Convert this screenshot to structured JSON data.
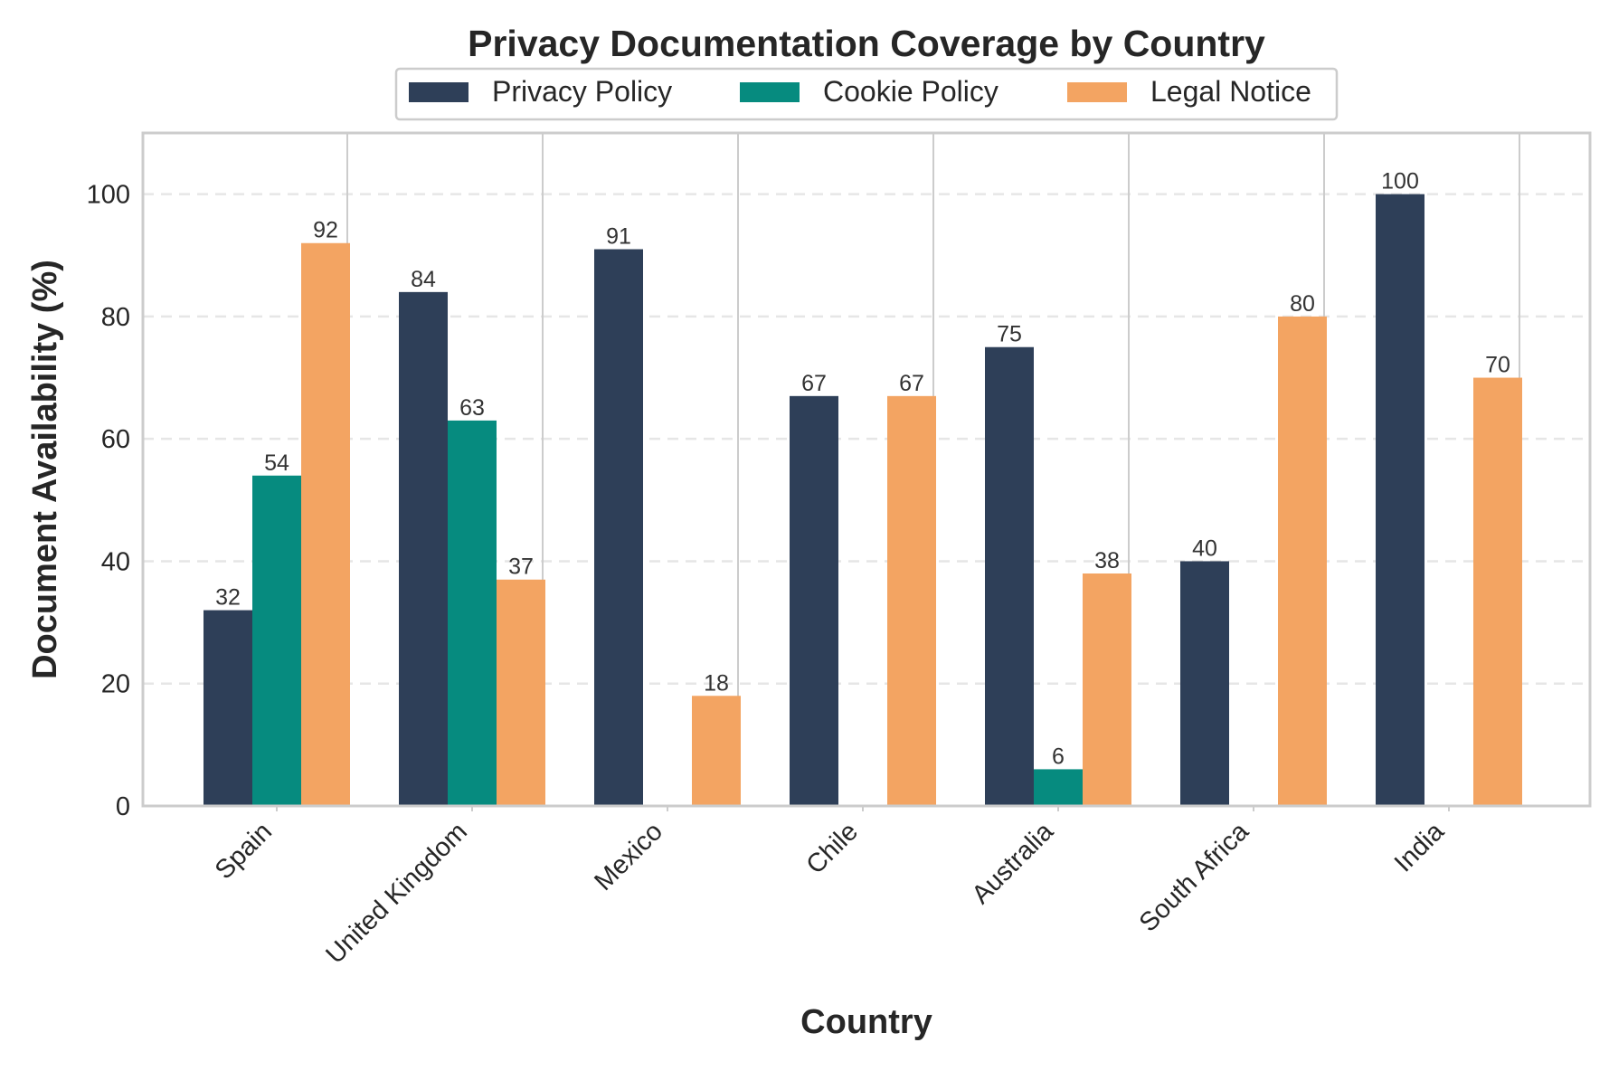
{
  "chart_data": {
    "type": "bar",
    "title": "Privacy Documentation Coverage by Country",
    "xlabel": "Country",
    "ylabel": "Document Availability (%)",
    "ylim": [
      0,
      110
    ],
    "yticks": [
      0,
      20,
      40,
      60,
      80,
      100
    ],
    "grid": "y-dashed",
    "legend_position": "top-center",
    "categories": [
      "Spain",
      "United Kingdom",
      "Mexico",
      "Chile",
      "Australia",
      "South Africa",
      "India"
    ],
    "series": [
      {
        "name": "Privacy Policy",
        "color": "#2e3f58",
        "values": [
          32,
          84,
          91,
          67,
          75,
          40,
          100
        ]
      },
      {
        "name": "Cookie Policy",
        "color": "#068b7f",
        "values": [
          54,
          63,
          null,
          null,
          6,
          null,
          null
        ]
      },
      {
        "name": "Legal Notice",
        "color": "#f3a462",
        "values": [
          92,
          37,
          18,
          67,
          38,
          80,
          70
        ]
      }
    ]
  }
}
